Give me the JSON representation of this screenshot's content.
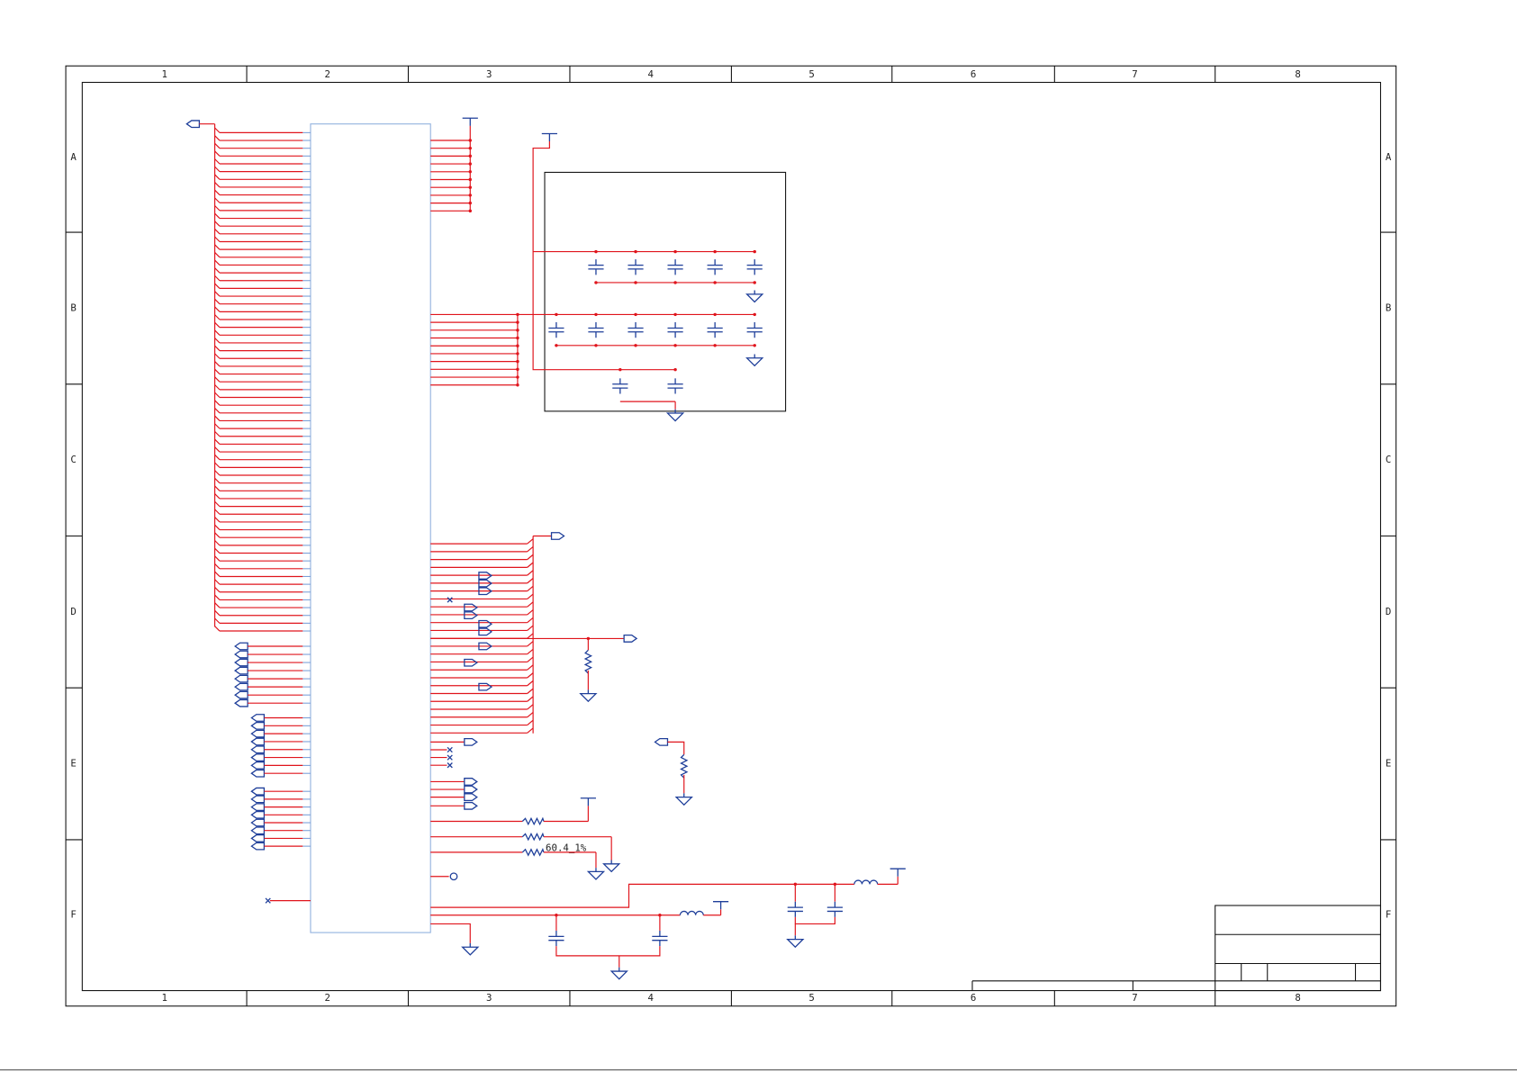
{
  "frame": {
    "columns": [
      "1",
      "2",
      "3",
      "4",
      "5",
      "6",
      "7",
      "8"
    ],
    "rows": [
      "A",
      "B",
      "C",
      "D",
      "E",
      "F"
    ]
  },
  "labels": {
    "resistor_value": "60.4_1%"
  }
}
